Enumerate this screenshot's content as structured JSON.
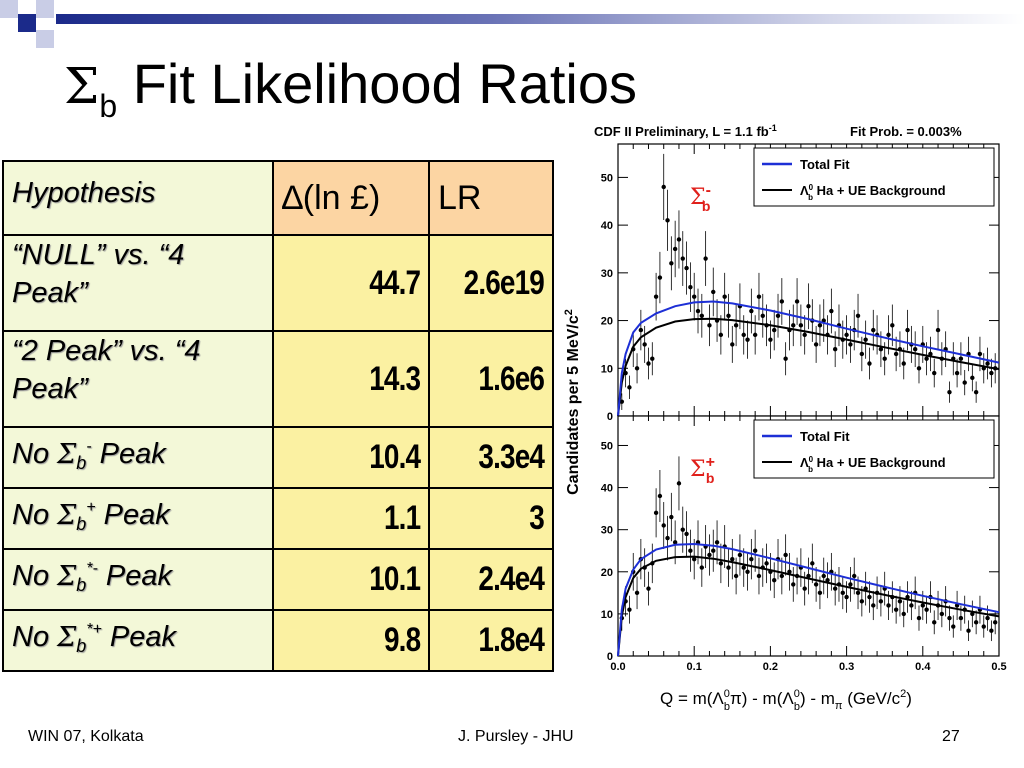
{
  "slide": {
    "title_symbol": "Σ",
    "title_sub": "b",
    "title_rest": " Fit Likelihood Ratios",
    "footer_left": "WIN 07, Kolkata",
    "footer_center": "J. Pursley - JHU",
    "footer_right": "27"
  },
  "table": {
    "headers": {
      "hypothesis": "Hypothesis",
      "dlnl": "∆(ln £)",
      "lr": "LR"
    },
    "rows": [
      {
        "hyp": "“NULL” vs. “4 Peak”",
        "dlnl": "44.7",
        "lr": "2.6e19"
      },
      {
        "hyp": "“2 Peak” vs. “4 Peak”",
        "dlnl": "14.3",
        "lr": "1.6e6"
      },
      {
        "hyp_pre": "No ",
        "hyp_sym": "Σ",
        "hyp_sub": "b",
        "hyp_sup": "-",
        "hyp_post": " Peak",
        "dlnl": "10.4",
        "lr": "3.3e4"
      },
      {
        "hyp_pre": "No ",
        "hyp_sym": "Σ",
        "hyp_sub": "b",
        "hyp_sup": "+",
        "hyp_post": " Peak",
        "dlnl": "1.1",
        "lr": "3"
      },
      {
        "hyp_pre": "No ",
        "hyp_sym": "Σ",
        "hyp_sub": "b",
        "hyp_sup": "*-",
        "hyp_post": " Peak",
        "dlnl": "10.1",
        "lr": "2.4e4"
      },
      {
        "hyp_pre": "No ",
        "hyp_sym": "Σ",
        "hyp_sub": "b",
        "hyp_sup": "*+",
        "hyp_post": " Peak",
        "dlnl": "9.8",
        "lr": "1.8e4"
      }
    ]
  },
  "chart_data": {
    "type": "scatter",
    "header_left": "CDF II Preliminary, L = 1.1 fb",
    "header_left_sup": "-1",
    "header_right": "Fit Prob. = 0.003%",
    "ylabel": "Candidates per 5 MeV/c",
    "ylabel_sup": "2",
    "xlabel": "Q = m(Λ",
    "xlabel_full": "Q = m(Λb0π) - m(Λb0) - mπ   (GeV/c2)",
    "x_ticks": [
      "0.0",
      "0.1",
      "0.2",
      "0.3",
      "0.4",
      "0.5"
    ],
    "y_ticks_top": [
      "0",
      "10",
      "20",
      "30",
      "40",
      "50"
    ],
    "y_ticks_bottom": [
      "0",
      "10",
      "20",
      "30",
      "40",
      "50"
    ],
    "xlim": [
      0,
      0.5
    ],
    "ylim": [
      0,
      57
    ],
    "legend": {
      "total": "Total Fit",
      "bkg_pre": "Λ",
      "bkg_sub": "b",
      "bkg_sup": "0",
      "bkg_post": " Ha + UE Background"
    },
    "colors": {
      "total_fit": "#1d2fd6",
      "background": "#000000",
      "label": "#e0201b",
      "points": "#000000"
    },
    "panels": [
      {
        "name": "top",
        "label_sym": "Σ",
        "label_sub": "b",
        "label_sup": "-",
        "points": [
          [
            0.005,
            3
          ],
          [
            0.01,
            9
          ],
          [
            0.015,
            6
          ],
          [
            0.02,
            14
          ],
          [
            0.025,
            10
          ],
          [
            0.03,
            18
          ],
          [
            0.035,
            15
          ],
          [
            0.04,
            11
          ],
          [
            0.045,
            12
          ],
          [
            0.05,
            25
          ],
          [
            0.055,
            29
          ],
          [
            0.06,
            48
          ],
          [
            0.065,
            41
          ],
          [
            0.07,
            32
          ],
          [
            0.075,
            35
          ],
          [
            0.08,
            37
          ],
          [
            0.085,
            33
          ],
          [
            0.09,
            31
          ],
          [
            0.095,
            27
          ],
          [
            0.1,
            25
          ],
          [
            0.105,
            22
          ],
          [
            0.11,
            21
          ],
          [
            0.115,
            33
          ],
          [
            0.12,
            19
          ],
          [
            0.125,
            26
          ],
          [
            0.13,
            20
          ],
          [
            0.135,
            17
          ],
          [
            0.14,
            25
          ],
          [
            0.145,
            21
          ],
          [
            0.15,
            15
          ],
          [
            0.155,
            19
          ],
          [
            0.16,
            23
          ],
          [
            0.165,
            17
          ],
          [
            0.17,
            16
          ],
          [
            0.175,
            22
          ],
          [
            0.18,
            17
          ],
          [
            0.185,
            25
          ],
          [
            0.19,
            21
          ],
          [
            0.195,
            19
          ],
          [
            0.2,
            16
          ],
          [
            0.205,
            18
          ],
          [
            0.21,
            21
          ],
          [
            0.215,
            24
          ],
          [
            0.22,
            12
          ],
          [
            0.225,
            18
          ],
          [
            0.23,
            19
          ],
          [
            0.235,
            24
          ],
          [
            0.24,
            19
          ],
          [
            0.245,
            17
          ],
          [
            0.25,
            23
          ],
          [
            0.255,
            20
          ],
          [
            0.26,
            15
          ],
          [
            0.265,
            19
          ],
          [
            0.27,
            20
          ],
          [
            0.275,
            17
          ],
          [
            0.28,
            22
          ],
          [
            0.285,
            14
          ],
          [
            0.29,
            19
          ],
          [
            0.295,
            16
          ],
          [
            0.3,
            17
          ],
          [
            0.305,
            15
          ],
          [
            0.31,
            18
          ],
          [
            0.315,
            21
          ],
          [
            0.32,
            13
          ],
          [
            0.325,
            16
          ],
          [
            0.33,
            11
          ],
          [
            0.335,
            18
          ],
          [
            0.34,
            17
          ],
          [
            0.345,
            14
          ],
          [
            0.35,
            12
          ],
          [
            0.355,
            17
          ],
          [
            0.36,
            19
          ],
          [
            0.365,
            13
          ],
          [
            0.37,
            14
          ],
          [
            0.375,
            11
          ],
          [
            0.38,
            18
          ],
          [
            0.385,
            15
          ],
          [
            0.39,
            14
          ],
          [
            0.395,
            10
          ],
          [
            0.4,
            15
          ],
          [
            0.405,
            12
          ],
          [
            0.41,
            13
          ],
          [
            0.415,
            9
          ],
          [
            0.42,
            18
          ],
          [
            0.425,
            12
          ],
          [
            0.43,
            14
          ],
          [
            0.435,
            5
          ],
          [
            0.44,
            12
          ],
          [
            0.445,
            9
          ],
          [
            0.45,
            12
          ],
          [
            0.455,
            7
          ],
          [
            0.46,
            13
          ],
          [
            0.465,
            8
          ],
          [
            0.47,
            5
          ],
          [
            0.475,
            13
          ],
          [
            0.48,
            10
          ],
          [
            0.485,
            11
          ],
          [
            0.49,
            9
          ],
          [
            0.495,
            10
          ]
        ],
        "total_fit": [
          [
            0.0,
            0
          ],
          [
            0.005,
            9
          ],
          [
            0.01,
            13
          ],
          [
            0.02,
            17.5
          ],
          [
            0.03,
            19.5
          ],
          [
            0.05,
            21.5
          ],
          [
            0.075,
            23
          ],
          [
            0.1,
            23.8
          ],
          [
            0.125,
            24
          ],
          [
            0.15,
            23.6
          ],
          [
            0.2,
            22.1
          ],
          [
            0.25,
            20.3
          ],
          [
            0.3,
            18.3
          ],
          [
            0.35,
            16.4
          ],
          [
            0.4,
            14.6
          ],
          [
            0.45,
            12.9
          ],
          [
            0.5,
            11.2
          ]
        ],
        "background": [
          [
            0.0,
            0
          ],
          [
            0.005,
            7
          ],
          [
            0.01,
            10.5
          ],
          [
            0.02,
            14.5
          ],
          [
            0.03,
            16.5
          ],
          [
            0.05,
            18.5
          ],
          [
            0.075,
            19.8
          ],
          [
            0.1,
            20.3
          ],
          [
            0.125,
            20.4
          ],
          [
            0.15,
            20.1
          ],
          [
            0.2,
            19
          ],
          [
            0.25,
            17.6
          ],
          [
            0.3,
            16
          ],
          [
            0.35,
            14.4
          ],
          [
            0.4,
            12.8
          ],
          [
            0.45,
            11.3
          ],
          [
            0.5,
            9.8
          ]
        ]
      },
      {
        "name": "bottom",
        "label_sym": "Σ",
        "label_sub": "b",
        "label_sup": "+",
        "points": [
          [
            0.005,
            9
          ],
          [
            0.01,
            13
          ],
          [
            0.015,
            11
          ],
          [
            0.02,
            20
          ],
          [
            0.025,
            15
          ],
          [
            0.03,
            23
          ],
          [
            0.035,
            21
          ],
          [
            0.04,
            16
          ],
          [
            0.045,
            22
          ],
          [
            0.05,
            34
          ],
          [
            0.055,
            38
          ],
          [
            0.06,
            31
          ],
          [
            0.065,
            28
          ],
          [
            0.07,
            33
          ],
          [
            0.075,
            27
          ],
          [
            0.08,
            41
          ],
          [
            0.085,
            30
          ],
          [
            0.09,
            29
          ],
          [
            0.095,
            25
          ],
          [
            0.1,
            23
          ],
          [
            0.105,
            27
          ],
          [
            0.11,
            21
          ],
          [
            0.115,
            26
          ],
          [
            0.12,
            24
          ],
          [
            0.125,
            25
          ],
          [
            0.13,
            27
          ],
          [
            0.135,
            22
          ],
          [
            0.14,
            26
          ],
          [
            0.145,
            21
          ],
          [
            0.15,
            23
          ],
          [
            0.155,
            19
          ],
          [
            0.16,
            24
          ],
          [
            0.165,
            21
          ],
          [
            0.17,
            20
          ],
          [
            0.175,
            23
          ],
          [
            0.18,
            25
          ],
          [
            0.185,
            19
          ],
          [
            0.19,
            21
          ],
          [
            0.195,
            22
          ],
          [
            0.2,
            20
          ],
          [
            0.205,
            18
          ],
          [
            0.21,
            23
          ],
          [
            0.215,
            19
          ],
          [
            0.22,
            24
          ],
          [
            0.225,
            20
          ],
          [
            0.23,
            17
          ],
          [
            0.235,
            19
          ],
          [
            0.24,
            21
          ],
          [
            0.245,
            16
          ],
          [
            0.25,
            19
          ],
          [
            0.255,
            22
          ],
          [
            0.26,
            17
          ],
          [
            0.265,
            15
          ],
          [
            0.27,
            19
          ],
          [
            0.275,
            18
          ],
          [
            0.28,
            20
          ],
          [
            0.285,
            16
          ],
          [
            0.29,
            17
          ],
          [
            0.295,
            15
          ],
          [
            0.3,
            14
          ],
          [
            0.305,
            17
          ],
          [
            0.31,
            19
          ],
          [
            0.315,
            15
          ],
          [
            0.32,
            13
          ],
          [
            0.325,
            16
          ],
          [
            0.33,
            14
          ],
          [
            0.335,
            12
          ],
          [
            0.34,
            15
          ],
          [
            0.345,
            13
          ],
          [
            0.35,
            16
          ],
          [
            0.355,
            12
          ],
          [
            0.36,
            14
          ],
          [
            0.365,
            11
          ],
          [
            0.37,
            13
          ],
          [
            0.375,
            10
          ],
          [
            0.38,
            14
          ],
          [
            0.385,
            12
          ],
          [
            0.39,
            15
          ],
          [
            0.395,
            9
          ],
          [
            0.4,
            12
          ],
          [
            0.405,
            11
          ],
          [
            0.41,
            14
          ],
          [
            0.415,
            8
          ],
          [
            0.42,
            12
          ],
          [
            0.425,
            10
          ],
          [
            0.43,
            13
          ],
          [
            0.435,
            9
          ],
          [
            0.44,
            7
          ],
          [
            0.445,
            12
          ],
          [
            0.45,
            9
          ],
          [
            0.455,
            11
          ],
          [
            0.46,
            6
          ],
          [
            0.465,
            10
          ],
          [
            0.47,
            8
          ],
          [
            0.475,
            11
          ],
          [
            0.48,
            7
          ],
          [
            0.485,
            9
          ],
          [
            0.49,
            6
          ],
          [
            0.495,
            8
          ]
        ],
        "total_fit": [
          [
            0.0,
            0
          ],
          [
            0.005,
            11
          ],
          [
            0.01,
            16
          ],
          [
            0.02,
            20.5
          ],
          [
            0.03,
            23
          ],
          [
            0.05,
            25.3
          ],
          [
            0.075,
            26.4
          ],
          [
            0.1,
            26.6
          ],
          [
            0.125,
            26.2
          ],
          [
            0.15,
            25.4
          ],
          [
            0.2,
            23.2
          ],
          [
            0.25,
            20.9
          ],
          [
            0.3,
            18.6
          ],
          [
            0.35,
            16.4
          ],
          [
            0.4,
            14.3
          ],
          [
            0.45,
            12.3
          ],
          [
            0.5,
            10.4
          ]
        ],
        "background": [
          [
            0.0,
            0
          ],
          [
            0.005,
            9.5
          ],
          [
            0.01,
            14
          ],
          [
            0.02,
            18.5
          ],
          [
            0.03,
            20.7
          ],
          [
            0.05,
            22.6
          ],
          [
            0.075,
            23.5
          ],
          [
            0.1,
            23.6
          ],
          [
            0.125,
            23.1
          ],
          [
            0.15,
            22.3
          ],
          [
            0.2,
            20.4
          ],
          [
            0.25,
            18.4
          ],
          [
            0.3,
            16.4
          ],
          [
            0.35,
            14.5
          ],
          [
            0.4,
            12.7
          ],
          [
            0.45,
            11
          ],
          [
            0.5,
            9.4
          ]
        ]
      }
    ]
  }
}
